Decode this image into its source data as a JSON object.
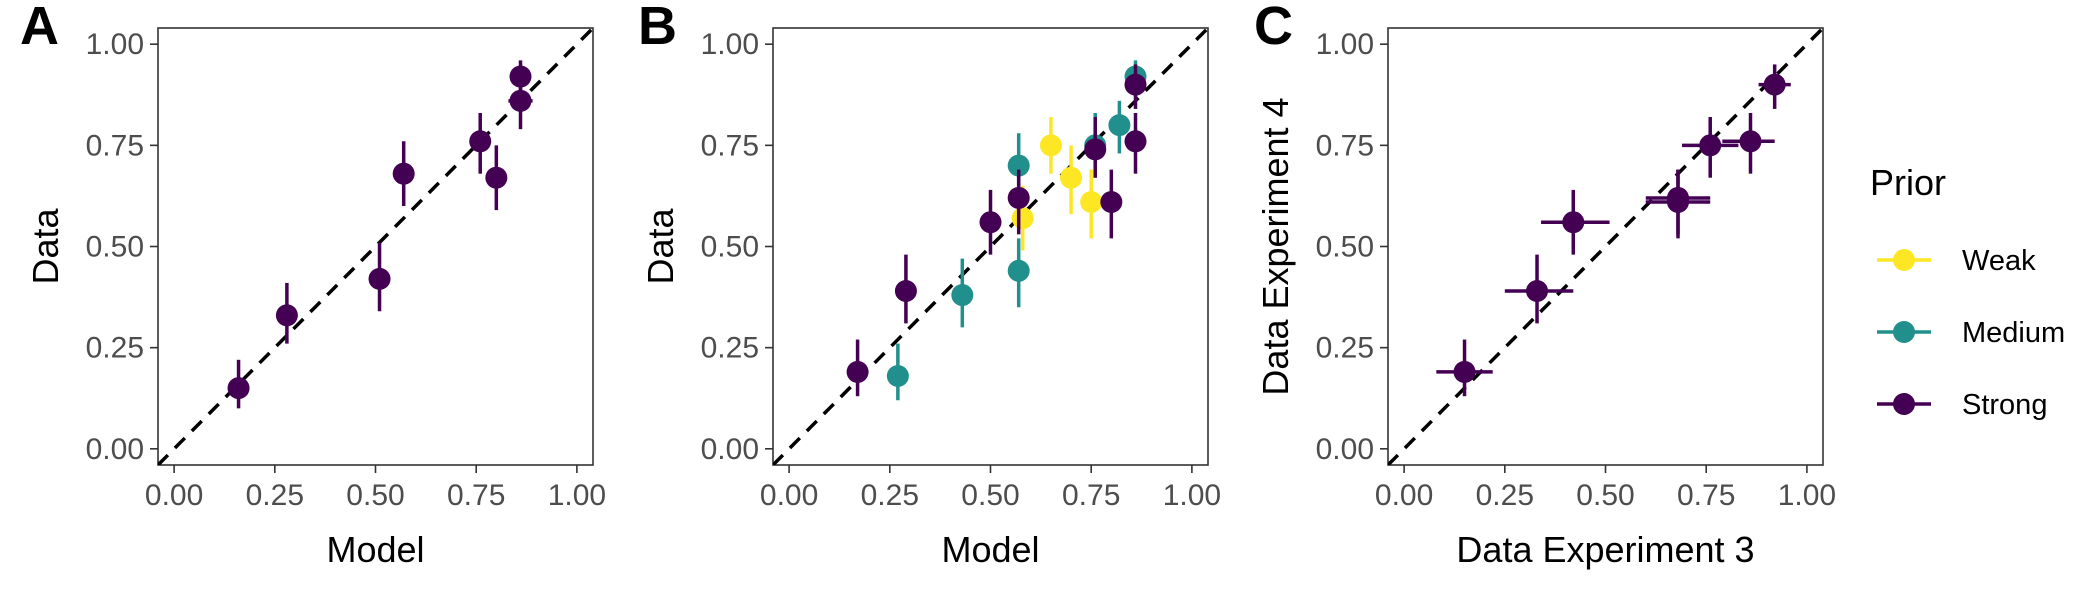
{
  "legend": {
    "title": "Prior",
    "entries": [
      {
        "name": "Weak",
        "color": "#FDE725"
      },
      {
        "name": "Medium",
        "color": "#21908C"
      },
      {
        "name": "Strong",
        "color": "#440154"
      }
    ],
    "placement": "right"
  },
  "chart_data": [
    {
      "type": "scatter",
      "panel": "A",
      "xlabel": "Model",
      "ylabel": "Data",
      "xlim": [
        -0.04,
        1.04
      ],
      "ylim": [
        -0.04,
        1.04
      ],
      "xticks": [
        "0.00",
        "0.25",
        "0.50",
        "0.75",
        "1.00"
      ],
      "yticks": [
        "0.00",
        "0.25",
        "0.50",
        "0.75",
        "1.00"
      ],
      "identity_line": true,
      "points": [
        {
          "prior": "Strong",
          "x": 0.16,
          "y": 0.15,
          "ylo": 0.1,
          "yhi": 0.22
        },
        {
          "prior": "Strong",
          "x": 0.28,
          "y": 0.33,
          "ylo": 0.26,
          "yhi": 0.41
        },
        {
          "prior": "Strong",
          "x": 0.51,
          "y": 0.42,
          "ylo": 0.34,
          "yhi": 0.51
        },
        {
          "prior": "Strong",
          "x": 0.57,
          "y": 0.68,
          "ylo": 0.6,
          "yhi": 0.76
        },
        {
          "prior": "Strong",
          "x": 0.76,
          "y": 0.76,
          "ylo": 0.68,
          "yhi": 0.83
        },
        {
          "prior": "Strong",
          "x": 0.8,
          "y": 0.67,
          "ylo": 0.59,
          "yhi": 0.75
        },
        {
          "prior": "Strong",
          "x": 0.86,
          "y": 0.86,
          "ylo": 0.79,
          "yhi": 0.92,
          "xlo": 0.83,
          "xhi": 0.89
        },
        {
          "prior": "Strong",
          "x": 0.86,
          "y": 0.92,
          "ylo": 0.88,
          "yhi": 0.96
        }
      ]
    },
    {
      "type": "scatter",
      "panel": "B",
      "xlabel": "Model",
      "ylabel": "Data",
      "xlim": [
        -0.04,
        1.04
      ],
      "ylim": [
        -0.04,
        1.04
      ],
      "xticks": [
        "0.00",
        "0.25",
        "0.50",
        "0.75",
        "1.00"
      ],
      "yticks": [
        "0.00",
        "0.25",
        "0.50",
        "0.75",
        "1.00"
      ],
      "identity_line": true,
      "points": [
        {
          "prior": "Weak",
          "x": 0.58,
          "y": 0.57,
          "ylo": 0.49,
          "yhi": 0.65
        },
        {
          "prior": "Weak",
          "x": 0.65,
          "y": 0.75,
          "ylo": 0.68,
          "yhi": 0.82
        },
        {
          "prior": "Weak",
          "x": 0.7,
          "y": 0.67,
          "ylo": 0.58,
          "yhi": 0.75
        },
        {
          "prior": "Weak",
          "x": 0.75,
          "y": 0.61,
          "ylo": 0.52,
          "yhi": 0.69
        },
        {
          "prior": "Medium",
          "x": 0.27,
          "y": 0.18,
          "ylo": 0.12,
          "yhi": 0.26
        },
        {
          "prior": "Medium",
          "x": 0.43,
          "y": 0.38,
          "ylo": 0.3,
          "yhi": 0.47
        },
        {
          "prior": "Medium",
          "x": 0.57,
          "y": 0.7,
          "ylo": 0.62,
          "yhi": 0.78
        },
        {
          "prior": "Medium",
          "x": 0.57,
          "y": 0.44,
          "ylo": 0.35,
          "yhi": 0.52
        },
        {
          "prior": "Medium",
          "x": 0.76,
          "y": 0.75,
          "ylo": 0.67,
          "yhi": 0.83
        },
        {
          "prior": "Medium",
          "x": 0.82,
          "y": 0.8,
          "ylo": 0.73,
          "yhi": 0.86
        },
        {
          "prior": "Medium",
          "x": 0.86,
          "y": 0.92,
          "ylo": 0.87,
          "yhi": 0.96
        },
        {
          "prior": "Strong",
          "x": 0.17,
          "y": 0.19,
          "ylo": 0.13,
          "yhi": 0.27
        },
        {
          "prior": "Strong",
          "x": 0.29,
          "y": 0.39,
          "ylo": 0.31,
          "yhi": 0.48
        },
        {
          "prior": "Strong",
          "x": 0.5,
          "y": 0.56,
          "ylo": 0.48,
          "yhi": 0.64
        },
        {
          "prior": "Strong",
          "x": 0.57,
          "y": 0.62,
          "ylo": 0.53,
          "yhi": 0.69
        },
        {
          "prior": "Strong",
          "x": 0.76,
          "y": 0.74,
          "ylo": 0.67,
          "yhi": 0.82
        },
        {
          "prior": "Strong",
          "x": 0.8,
          "y": 0.61,
          "ylo": 0.52,
          "yhi": 0.69
        },
        {
          "prior": "Strong",
          "x": 0.86,
          "y": 0.76,
          "ylo": 0.68,
          "yhi": 0.83
        },
        {
          "prior": "Strong",
          "x": 0.86,
          "y": 0.9,
          "ylo": 0.84,
          "yhi": 0.95
        }
      ]
    },
    {
      "type": "scatter",
      "panel": "C",
      "xlabel": "Data Experiment 3",
      "ylabel": "Data Experiment 4",
      "xlim": [
        -0.04,
        1.04
      ],
      "ylim": [
        -0.04,
        1.04
      ],
      "xticks": [
        "0.00",
        "0.25",
        "0.50",
        "0.75",
        "1.00"
      ],
      "yticks": [
        "0.00",
        "0.25",
        "0.50",
        "0.75",
        "1.00"
      ],
      "identity_line": true,
      "points": [
        {
          "prior": "Strong",
          "x": 0.15,
          "y": 0.19,
          "xlo": 0.08,
          "xhi": 0.22,
          "ylo": 0.13,
          "yhi": 0.27
        },
        {
          "prior": "Strong",
          "x": 0.33,
          "y": 0.39,
          "xlo": 0.25,
          "xhi": 0.42,
          "ylo": 0.31,
          "yhi": 0.48
        },
        {
          "prior": "Strong",
          "x": 0.42,
          "y": 0.56,
          "xlo": 0.34,
          "xhi": 0.51,
          "ylo": 0.48,
          "yhi": 0.64
        },
        {
          "prior": "Strong",
          "x": 0.68,
          "y": 0.62,
          "xlo": 0.6,
          "xhi": 0.76,
          "ylo": 0.53,
          "yhi": 0.69
        },
        {
          "prior": "Strong",
          "x": 0.68,
          "y": 0.61,
          "xlo": 0.6,
          "xhi": 0.76,
          "ylo": 0.52,
          "yhi": 0.69
        },
        {
          "prior": "Strong",
          "x": 0.76,
          "y": 0.75,
          "xlo": 0.69,
          "xhi": 0.83,
          "ylo": 0.67,
          "yhi": 0.82
        },
        {
          "prior": "Strong",
          "x": 0.86,
          "y": 0.76,
          "xlo": 0.79,
          "xhi": 0.92,
          "ylo": 0.68,
          "yhi": 0.83
        },
        {
          "prior": "Strong",
          "x": 0.92,
          "y": 0.9,
          "xlo": 0.88,
          "xhi": 0.96,
          "ylo": 0.84,
          "yhi": 0.95
        }
      ]
    }
  ]
}
